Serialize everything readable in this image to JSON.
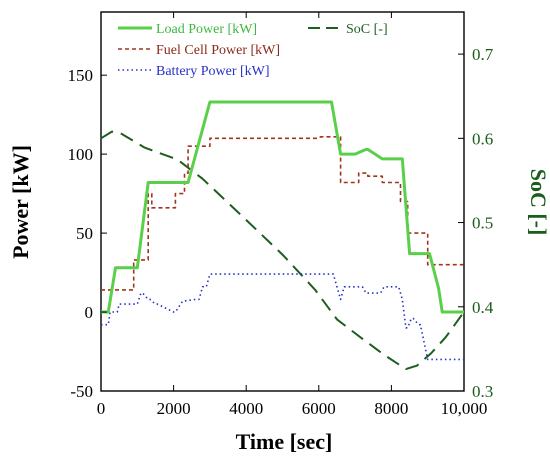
{
  "chart_data": {
    "type": "line",
    "xlabel": "Time [sec]",
    "ylabel": "Power [kW]",
    "y2label": "SoC [-]",
    "xlim": [
      0,
      10000
    ],
    "ylim": [
      -50,
      190
    ],
    "y2lim": [
      0.3,
      0.75
    ],
    "xticks": [
      "0",
      "2000",
      "4000",
      "6000",
      "8000",
      "10,000"
    ],
    "xtick_values": [
      0,
      2000,
      4000,
      6000,
      8000,
      10000
    ],
    "yticks": [
      "-50",
      "0",
      "50",
      "100",
      "150"
    ],
    "ytick_values": [
      -50,
      0,
      50,
      100,
      150
    ],
    "y2ticks": [
      "0.3",
      "0.4",
      "0.5",
      "0.6",
      "0.7"
    ],
    "y2tick_values": [
      0.3,
      0.4,
      0.5,
      0.6,
      0.7
    ],
    "grid": false,
    "legend_placement": "top",
    "series": [
      {
        "name": "Load Power [kW]",
        "axis": "left",
        "color": "#5ad04a",
        "style": "solid",
        "x": [
          0,
          200,
          400,
          450,
          900,
          1000,
          1300,
          1350,
          2000,
          2050,
          2300,
          2400,
          3000,
          3050,
          6300,
          6350,
          6600,
          6650,
          6950,
          7000,
          7300,
          7350,
          7750,
          7800,
          8250,
          8300,
          8500,
          8550,
          9000,
          9050,
          9300,
          9400,
          10000
        ],
        "y": [
          0,
          0,
          28,
          28,
          28,
          28,
          82,
          82,
          82,
          82,
          82,
          82,
          133,
          133,
          133,
          133,
          100,
          100,
          100,
          100,
          103,
          103,
          97,
          97,
          97,
          97,
          37,
          37,
          37,
          37,
          15,
          0,
          0
        ]
      },
      {
        "name": "Fuel Cell Power [kW]",
        "axis": "left",
        "color": "#a0341e",
        "style": "dashed",
        "x": [
          0,
          900,
          900,
          1300,
          1300,
          1400,
          1400,
          2050,
          2050,
          2300,
          2300,
          2400,
          2400,
          3000,
          3000,
          6000,
          6050,
          6600,
          6600,
          7100,
          7100,
          7350,
          7350,
          7750,
          7750,
          8250,
          8250,
          8450,
          8450,
          9000,
          9000,
          10000
        ],
        "y": [
          14,
          14,
          33,
          33,
          75,
          75,
          66,
          66,
          75,
          75,
          88,
          88,
          105,
          105,
          110,
          110,
          111,
          111,
          82,
          82,
          88,
          88,
          86,
          86,
          82,
          82,
          70,
          70,
          50,
          50,
          30,
          30
        ]
      },
      {
        "name": "Battery Power [kW]",
        "axis": "left",
        "color": "#2630c8",
        "style": "dotted",
        "x": [
          0,
          200,
          250,
          450,
          500,
          1000,
          1100,
          1150,
          1300,
          1350,
          1500,
          1550,
          2000,
          2050,
          2250,
          2300,
          2600,
          2700,
          2800,
          2900,
          3000,
          6000,
          6300,
          6400,
          6600,
          6700,
          7200,
          7300,
          7700,
          7800,
          8200,
          8300,
          8400,
          8450,
          8550,
          8600,
          8750,
          8800,
          9000,
          9100,
          9300,
          9350,
          10000
        ],
        "y": [
          -8,
          -8,
          0,
          0,
          5,
          5,
          12,
          12,
          8,
          8,
          5,
          5,
          0,
          0,
          7,
          7,
          8,
          8,
          16,
          16,
          24,
          24,
          24,
          24,
          8,
          16,
          16,
          12,
          12,
          16,
          16,
          8,
          -10,
          -10,
          -4,
          -4,
          -8,
          -8,
          -30,
          -30,
          -30,
          -30,
          -30
        ]
      },
      {
        "name": "SoC [-]",
        "axis": "right",
        "color": "#1e5e1e",
        "style": "longdash",
        "x": [
          0,
          300,
          500,
          1200,
          2100,
          2800,
          4000,
          5000,
          5900,
          6500,
          7200,
          7800,
          8400,
          8700,
          9100,
          9500,
          10000
        ],
        "y": [
          0.6,
          0.608,
          0.607,
          0.589,
          0.575,
          0.552,
          0.503,
          0.462,
          0.42,
          0.385,
          0.362,
          0.343,
          0.326,
          0.33,
          0.345,
          0.364,
          0.394
        ]
      }
    ]
  }
}
